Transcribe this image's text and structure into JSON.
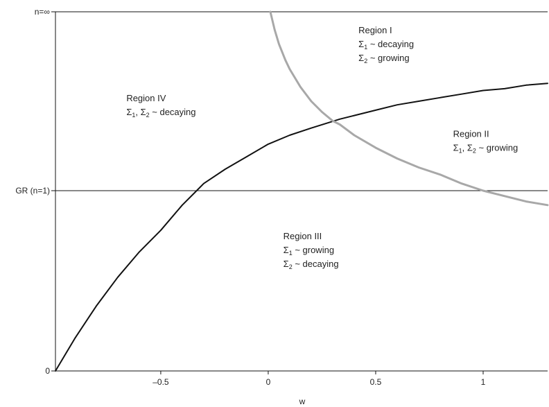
{
  "chart_data": {
    "type": "line",
    "xlabel": "w",
    "ylabel": "",
    "xlim": [
      -0.99,
      1.3
    ],
    "x_ticks": [
      {
        "value": -0.5,
        "label": "-0.5"
      },
      {
        "value": 0,
        "label": "0"
      },
      {
        "value": 0.5,
        "label": "0.5"
      },
      {
        "value": 1,
        "label": "1"
      }
    ],
    "y_ticks": [
      {
        "value": 0,
        "label": "0"
      },
      {
        "value": 1,
        "label": "GR (n=1)"
      },
      {
        "value": 2,
        "label": "n=∞"
      }
    ],
    "reference_line": {
      "y": 1
    },
    "series": [
      {
        "color": "#111111",
        "x": [
          -0.99,
          -0.9,
          -0.8,
          -0.7,
          -0.6,
          -0.5,
          -0.4,
          -0.333,
          -0.3,
          -0.2,
          -0.1,
          0,
          0.1,
          0.2,
          0.333,
          0.4,
          0.5,
          0.6,
          0.7,
          0.8,
          0.9,
          1.0,
          1.1,
          1.2,
          1.3
        ],
        "values": [
          0.0,
          0.18,
          0.36,
          0.52,
          0.66,
          0.78,
          0.92,
          1.0,
          1.04,
          1.12,
          1.19,
          1.26,
          1.31,
          1.35,
          1.4,
          1.42,
          1.45,
          1.48,
          1.5,
          1.52,
          1.54,
          1.56,
          1.57,
          1.59,
          1.6
        ]
      },
      {
        "color": "#a8a8a8",
        "x": [
          0.01,
          0.03,
          0.05,
          0.08,
          0.1,
          0.15,
          0.2,
          0.25,
          0.3,
          0.333,
          0.4,
          0.5,
          0.6,
          0.7,
          0.8,
          0.9,
          1.0,
          1.1,
          1.2,
          1.3
        ],
        "values": [
          2.0,
          1.9,
          1.82,
          1.73,
          1.68,
          1.58,
          1.5,
          1.44,
          1.39,
          1.37,
          1.31,
          1.24,
          1.18,
          1.13,
          1.09,
          1.04,
          1.0,
          0.97,
          0.94,
          0.92
        ]
      }
    ],
    "annotations": [
      {
        "x": 0.42,
        "y": 1.88,
        "lines": [
          {
            "text": "Region I"
          },
          {
            "sym": "Σ",
            "sub": "1",
            "rest": " ~ decaying"
          },
          {
            "sym": "Σ",
            "sub": "2",
            "rest": " ~ growing"
          }
        ]
      },
      {
        "x": -0.66,
        "y": 1.5,
        "lines": [
          {
            "text": "Region IV"
          },
          {
            "sym": "Σ",
            "sub": "1",
            "rest": ", Σ",
            "sub2": "2",
            "rest2": " ~ decaying"
          }
        ]
      },
      {
        "x": 0.86,
        "y": 1.3,
        "lines": [
          {
            "text": "Region II"
          },
          {
            "sym": "Σ",
            "sub": "1",
            "rest": ", Σ",
            "sub2": "2",
            "rest2": " ~ growing"
          }
        ]
      },
      {
        "x": 0.07,
        "y": 0.73,
        "lines": [
          {
            "text": "Region III"
          },
          {
            "sym": "Σ",
            "sub": "1",
            "rest": " ~ growing"
          },
          {
            "sym": "Σ",
            "sub": "2",
            "rest": " ~ decaying"
          }
        ]
      }
    ]
  }
}
